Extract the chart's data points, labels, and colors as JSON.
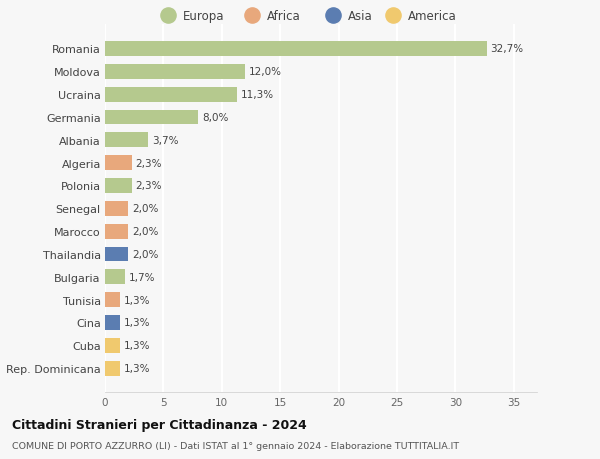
{
  "categories": [
    "Romania",
    "Moldova",
    "Ucraina",
    "Germania",
    "Albania",
    "Algeria",
    "Polonia",
    "Senegal",
    "Marocco",
    "Thailandia",
    "Bulgaria",
    "Tunisia",
    "Cina",
    "Cuba",
    "Rep. Dominicana"
  ],
  "values": [
    32.7,
    12.0,
    11.3,
    8.0,
    3.7,
    2.3,
    2.3,
    2.0,
    2.0,
    2.0,
    1.7,
    1.3,
    1.3,
    1.3,
    1.3
  ],
  "labels": [
    "32,7%",
    "12,0%",
    "11,3%",
    "8,0%",
    "3,7%",
    "2,3%",
    "2,3%",
    "2,0%",
    "2,0%",
    "2,0%",
    "1,7%",
    "1,3%",
    "1,3%",
    "1,3%",
    "1,3%"
  ],
  "continents": [
    "Europa",
    "Europa",
    "Europa",
    "Europa",
    "Europa",
    "Africa",
    "Europa",
    "Africa",
    "Africa",
    "Asia",
    "Europa",
    "Africa",
    "Asia",
    "America",
    "America"
  ],
  "colors": {
    "Europa": "#b5c98e",
    "Africa": "#e8a87c",
    "Asia": "#5b7db1",
    "America": "#f0c96e"
  },
  "legend_order": [
    "Europa",
    "Africa",
    "Asia",
    "America"
  ],
  "title": "Cittadini Stranieri per Cittadinanza - 2024",
  "subtitle": "COMUNE DI PORTO AZZURRO (LI) - Dati ISTAT al 1° gennaio 2024 - Elaborazione TUTTITALIA.IT",
  "xlim": [
    0,
    37
  ],
  "xticks": [
    0,
    5,
    10,
    15,
    20,
    25,
    30,
    35
  ],
  "background_color": "#f7f7f7",
  "grid_color": "#ffffff"
}
